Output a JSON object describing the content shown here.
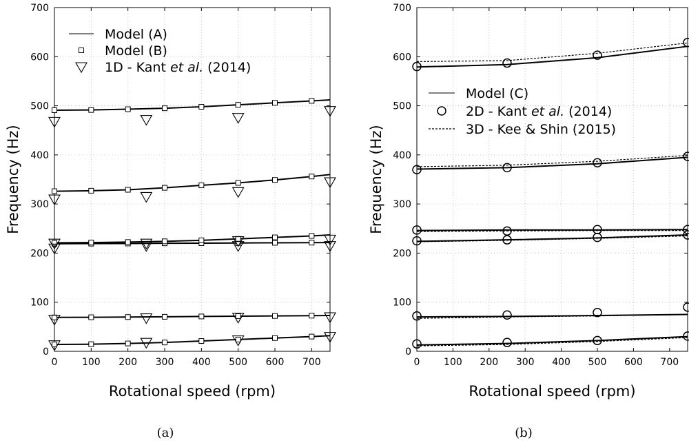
{
  "chart_data": [
    {
      "type": "line",
      "caption": "(a)",
      "xlabel": "Rotational speed (rpm)",
      "ylabel": "Frequency (Hz)",
      "xlim": [
        0,
        750
      ],
      "ylim": [
        0,
        700
      ],
      "xticks": [
        0,
        100,
        200,
        300,
        400,
        500,
        600,
        700
      ],
      "yticks": [
        0,
        100,
        200,
        300,
        400,
        500,
        600,
        700
      ],
      "grid": "dotted",
      "legend_position": "top-left",
      "legend": [
        {
          "label": "Model (A)",
          "marker": "line"
        },
        {
          "label": "Model (B)",
          "marker": "square"
        },
        {
          "label_before": "1D - Kant ",
          "label_italic": "et al.",
          "label_after": " (2014)",
          "marker": "triangle-down"
        }
      ],
      "series": [
        {
          "name": "Model (A)",
          "style": "solid",
          "curves": [
            {
              "x": [
                0,
                100,
                200,
                300,
                400,
                500,
                600,
                700,
                750
              ],
              "y": [
                14,
                14.5,
                16,
                18,
                21,
                24,
                27,
                30,
                32
              ]
            },
            {
              "x": [
                0,
                100,
                200,
                300,
                400,
                500,
                600,
                700,
                750
              ],
              "y": [
                69,
                69.3,
                69.8,
                70.3,
                71,
                71.5,
                72,
                72.6,
                73
              ]
            },
            {
              "x": [
                0,
                100,
                200,
                300,
                400,
                500,
                600,
                700,
                750
              ],
              "y": [
                219,
                219.3,
                219.6,
                220,
                220.3,
                220.6,
                221,
                221.3,
                221.5
              ]
            },
            {
              "x": [
                0,
                100,
                200,
                300,
                400,
                500,
                600,
                700,
                750
              ],
              "y": [
                221,
                221.5,
                222.5,
                224,
                226,
                229,
                232,
                235,
                237
              ]
            },
            {
              "x": [
                0,
                100,
                200,
                300,
                400,
                500,
                600,
                700,
                750
              ],
              "y": [
                326,
                327,
                329,
                333,
                338,
                343,
                349,
                356,
                360
              ]
            },
            {
              "x": [
                0,
                100,
                200,
                300,
                400,
                500,
                600,
                700,
                750
              ],
              "y": [
                491,
                491.5,
                493,
                495,
                498,
                502,
                506,
                510,
                512
              ]
            }
          ]
        },
        {
          "name": "Model (B)",
          "style": "square",
          "points": [
            {
              "x": [
                0,
                100,
                200,
                300,
                400,
                500,
                600,
                700
              ],
              "y": [
                14,
                14.5,
                16,
                18,
                21,
                24,
                27,
                30
              ]
            },
            {
              "x": [
                0,
                100,
                200,
                300,
                400,
                500,
                600,
                700
              ],
              "y": [
                69,
                69.3,
                69.8,
                70.3,
                71,
                71.5,
                72,
                72.6
              ]
            },
            {
              "x": [
                0,
                100,
                200,
                300,
                400,
                500,
                600,
                700
              ],
              "y": [
                219,
                219.3,
                219.6,
                220,
                220.3,
                220.6,
                221,
                221.3
              ]
            },
            {
              "x": [
                0,
                100,
                200,
                300,
                400,
                500,
                600,
                700
              ],
              "y": [
                221,
                221.5,
                222.5,
                224,
                226,
                229,
                232,
                235
              ]
            },
            {
              "x": [
                0,
                100,
                200,
                300,
                400,
                500,
                600,
                700
              ],
              "y": [
                326,
                327,
                329,
                333,
                338,
                343,
                349,
                356
              ]
            },
            {
              "x": [
                0,
                100,
                200,
                300,
                400,
                500,
                600,
                700
              ],
              "y": [
                491,
                491.5,
                493,
                495,
                498,
                502,
                506,
                510
              ]
            }
          ]
        },
        {
          "name": "1D - Kant et al. (2014)",
          "style": "triangle-down",
          "points": [
            {
              "x": [
                0,
                250,
                500,
                750
              ],
              "y": [
                13,
                18,
                23,
                30
              ]
            },
            {
              "x": [
                0,
                250,
                500,
                750
              ],
              "y": [
                65,
                68,
                69,
                70
              ]
            },
            {
              "x": [
                0,
                250,
                500,
                750
              ],
              "y": [
                210,
                215,
                215,
                215
              ]
            },
            {
              "x": [
                0,
                250,
                500,
                750
              ],
              "y": [
                220,
                220,
                225,
                228
              ]
            },
            {
              "x": [
                0,
                250,
                500,
                750
              ],
              "y": [
                310,
                315,
                325,
                345
              ]
            },
            {
              "x": [
                0,
                250,
                500,
                750
              ],
              "y": [
                468,
                472,
                476,
                490
              ]
            }
          ]
        }
      ]
    },
    {
      "type": "line",
      "caption": "(b)",
      "xlabel": "Rotational speed (rpm)",
      "ylabel": "Frequency (Hz)",
      "xlim": [
        0,
        750
      ],
      "ylim": [
        0,
        700
      ],
      "xticks": [
        0,
        100,
        200,
        300,
        400,
        500,
        600,
        700
      ],
      "yticks": [
        0,
        100,
        200,
        300,
        400,
        500,
        600,
        700
      ],
      "grid": "dotted",
      "legend_position": "middle-left",
      "legend": [
        {
          "label": "Model (C)",
          "marker": "line"
        },
        {
          "label_before": "2D - Kant ",
          "label_italic": "et al.",
          "label_after": " (2014)",
          "marker": "circle"
        },
        {
          "label": "3D - Kee & Shin (2015)",
          "marker": "dashed"
        }
      ],
      "series": [
        {
          "name": "Model (C)",
          "style": "solid",
          "curves": [
            {
              "x": [
                0,
                250,
                500,
                750
              ],
              "y": [
                13,
                16,
                22,
                30
              ]
            },
            {
              "x": [
                0,
                250,
                500,
                750
              ],
              "y": [
                70,
                71,
                73,
                75
              ]
            },
            {
              "x": [
                0,
                250,
                500,
                750
              ],
              "y": [
                224,
                227,
                231,
                237
              ]
            },
            {
              "x": [
                0,
                250,
                500,
                750
              ],
              "y": [
                246,
                247,
                247,
                248
              ]
            },
            {
              "x": [
                0,
                250,
                500,
                750
              ],
              "y": [
                371,
                374,
                382,
                395
              ]
            },
            {
              "x": [
                0,
                250,
                500,
                750
              ],
              "y": [
                579,
                584,
                598,
                621
              ]
            }
          ]
        },
        {
          "name": "2D - Kant et al. (2014)",
          "style": "circle",
          "points": [
            {
              "x": [
                0,
                250,
                500,
                750
              ],
              "y": [
                15,
                18,
                22,
                31
              ]
            },
            {
              "x": [
                0,
                250,
                500,
                750
              ],
              "y": [
                72,
                74,
                79,
                90
              ]
            },
            {
              "x": [
                0,
                250,
                500,
                750
              ],
              "y": [
                225,
                227,
                232,
                237
              ]
            },
            {
              "x": [
                0,
                250,
                500,
                750
              ],
              "y": [
                247,
                245,
                248,
                248
              ]
            },
            {
              "x": [
                0,
                250,
                500,
                750
              ],
              "y": [
                370,
                374,
                384,
                397
              ]
            },
            {
              "x": [
                0,
                250,
                500,
                750
              ],
              "y": [
                580,
                587,
                603,
                629
              ]
            }
          ]
        },
        {
          "name": "3D - Kee & Shin (2015)",
          "style": "dashed",
          "curves": [
            {
              "x": [
                0,
                250,
                500,
                750
              ],
              "y": [
                11,
                14,
                20,
                28
              ]
            },
            {
              "x": [
                0,
                250,
                500,
                750
              ],
              "y": [
                67,
                70,
                72,
                75
              ]
            },
            {
              "x": [
                0,
                250,
                500,
                750
              ],
              "y": [
                223,
                226,
                230,
                235
              ]
            },
            {
              "x": [
                0,
                250,
                500,
                750
              ],
              "y": [
                244,
                245,
                246,
                246
              ]
            },
            {
              "x": [
                0,
                250,
                500,
                750
              ],
              "y": [
                376,
                379,
                387,
                399
              ]
            },
            {
              "x": [
                0,
                250,
                500,
                750
              ],
              "y": [
                590,
                592,
                607,
                628
              ]
            }
          ]
        }
      ]
    }
  ]
}
